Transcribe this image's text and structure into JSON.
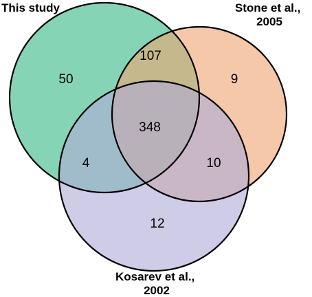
{
  "venn": {
    "sets": [
      {
        "key": "a",
        "label_lines": [
          "This study"
        ],
        "color": "#86d4b6"
      },
      {
        "key": "b",
        "label_lines": [
          "Stone et al.,",
          "2005"
        ],
        "color": "#eda774"
      },
      {
        "key": "c",
        "label_lines": [
          "Kosarev et al.,",
          "2002"
        ],
        "color": "#b0acd6"
      }
    ],
    "regions": {
      "a_only": "50",
      "b_only": "9",
      "c_only": "12",
      "ab": "107",
      "ac": "4",
      "bc": "10",
      "abc": "348"
    }
  }
}
